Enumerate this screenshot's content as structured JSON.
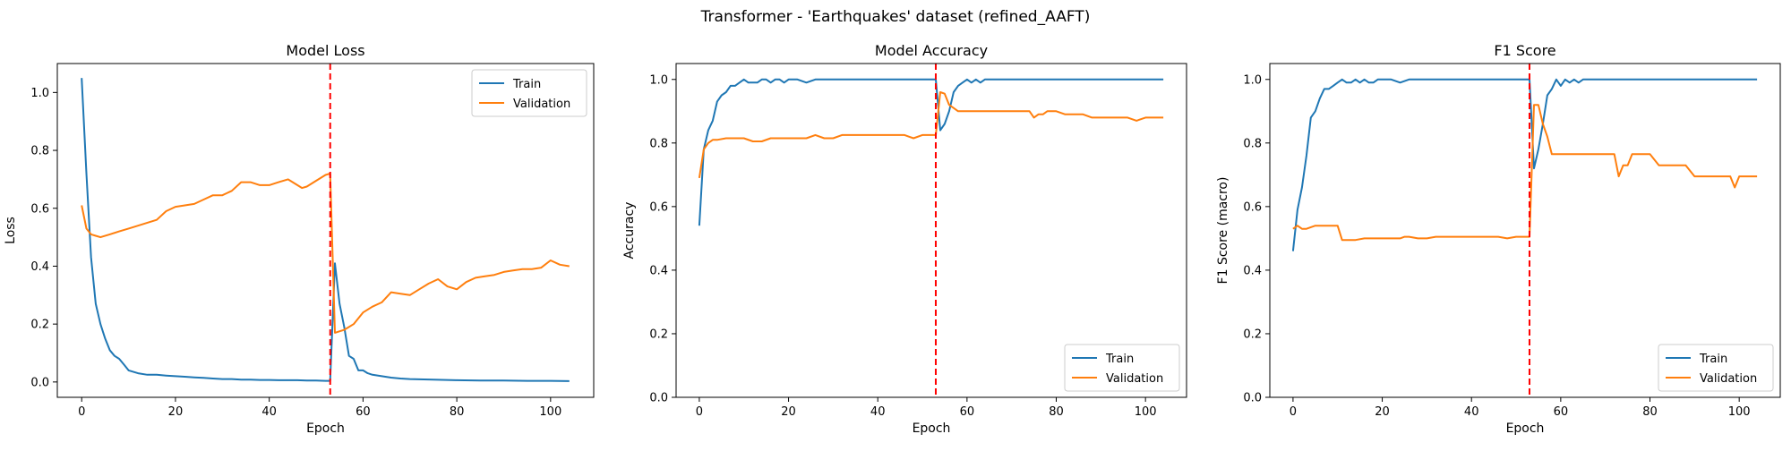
{
  "figure": {
    "suptitle": "Transformer - 'Earthquakes' dataset (refined_AAFT)"
  },
  "colors": {
    "train": "#1f77b4",
    "validation": "#ff7f0e",
    "marker": "#ff0000"
  },
  "chart_data": [
    {
      "type": "line",
      "title": "Model Loss",
      "xlabel": "Epoch",
      "ylabel": "Loss",
      "xlim": [
        -5.2,
        109.2
      ],
      "ylim": [
        -0.053,
        1.1
      ],
      "xticks": [
        0,
        20,
        40,
        60,
        80,
        100
      ],
      "yticks": [
        0.0,
        0.2,
        0.4,
        0.6,
        0.8,
        1.0
      ],
      "ytick_labels": [
        "0.0",
        "0.2",
        "0.4",
        "0.6",
        "0.8",
        "1.0"
      ],
      "legend": "top-right",
      "vline": 53,
      "series": [
        {
          "name": "Train",
          "x": [
            0,
            1,
            2,
            3,
            4,
            5,
            6,
            7,
            8,
            9,
            10,
            12,
            14,
            16,
            18,
            20,
            22,
            24,
            26,
            28,
            30,
            32,
            34,
            36,
            38,
            40,
            42,
            44,
            46,
            48,
            50,
            52,
            53,
            54,
            55,
            56,
            57,
            58,
            59,
            60,
            61,
            62,
            64,
            66,
            68,
            70,
            75,
            80,
            85,
            90,
            95,
            100,
            104
          ],
          "values": [
            1.05,
            0.72,
            0.43,
            0.27,
            0.2,
            0.15,
            0.11,
            0.09,
            0.08,
            0.06,
            0.04,
            0.03,
            0.025,
            0.025,
            0.022,
            0.02,
            0.018,
            0.016,
            0.014,
            0.012,
            0.01,
            0.01,
            0.008,
            0.008,
            0.007,
            0.007,
            0.006,
            0.006,
            0.006,
            0.005,
            0.005,
            0.004,
            0.004,
            0.41,
            0.27,
            0.19,
            0.09,
            0.08,
            0.04,
            0.04,
            0.03,
            0.025,
            0.02,
            0.015,
            0.012,
            0.01,
            0.008,
            0.006,
            0.005,
            0.005,
            0.004,
            0.004,
            0.003
          ]
        },
        {
          "name": "Validation",
          "x": [
            0,
            1,
            2,
            3,
            4,
            6,
            8,
            10,
            12,
            14,
            16,
            18,
            20,
            22,
            24,
            26,
            28,
            30,
            32,
            34,
            36,
            38,
            40,
            42,
            44,
            46,
            47,
            48,
            50,
            52,
            53,
            54,
            56,
            58,
            60,
            62,
            64,
            66,
            68,
            70,
            72,
            74,
            76,
            78,
            80,
            82,
            84,
            86,
            88,
            90,
            92,
            94,
            96,
            98,
            100,
            102,
            104
          ],
          "values": [
            0.61,
            0.53,
            0.51,
            0.505,
            0.5,
            0.51,
            0.52,
            0.53,
            0.54,
            0.55,
            0.56,
            0.59,
            0.605,
            0.61,
            0.615,
            0.63,
            0.645,
            0.645,
            0.66,
            0.69,
            0.69,
            0.68,
            0.68,
            0.69,
            0.7,
            0.68,
            0.67,
            0.675,
            0.695,
            0.715,
            0.72,
            0.17,
            0.18,
            0.2,
            0.24,
            0.26,
            0.275,
            0.31,
            0.305,
            0.3,
            0.32,
            0.34,
            0.355,
            0.33,
            0.32,
            0.345,
            0.36,
            0.365,
            0.37,
            0.38,
            0.385,
            0.39,
            0.39,
            0.395,
            0.42,
            0.405,
            0.4
          ]
        }
      ]
    },
    {
      "type": "line",
      "title": "Model Accuracy",
      "xlabel": "Epoch",
      "ylabel": "Accuracy",
      "xlim": [
        -5.2,
        109.2
      ],
      "ylim": [
        0.0,
        1.05
      ],
      "xticks": [
        0,
        20,
        40,
        60,
        80,
        100
      ],
      "yticks": [
        0.0,
        0.2,
        0.4,
        0.6,
        0.8,
        1.0
      ],
      "ytick_labels": [
        "0.0",
        "0.2",
        "0.4",
        "0.6",
        "0.8",
        "1.0"
      ],
      "legend": "bottom-right",
      "vline": 53,
      "series": [
        {
          "name": "Train",
          "x": [
            0,
            1,
            2,
            3,
            4,
            5,
            6,
            7,
            8,
            9,
            10,
            11,
            12,
            13,
            14,
            15,
            16,
            17,
            18,
            19,
            20,
            22,
            24,
            26,
            28,
            30,
            35,
            40,
            45,
            50,
            52,
            53,
            54,
            55,
            56,
            57,
            58,
            59,
            60,
            61,
            62,
            63,
            64,
            65,
            70,
            80,
            90,
            100,
            104
          ],
          "values": [
            0.54,
            0.78,
            0.84,
            0.87,
            0.93,
            0.95,
            0.96,
            0.98,
            0.98,
            0.99,
            1.0,
            0.99,
            0.99,
            0.99,
            1.0,
            1.0,
            0.99,
            1.0,
            1.0,
            0.99,
            1.0,
            1.0,
            0.99,
            1.0,
            1.0,
            1.0,
            1.0,
            1.0,
            1.0,
            1.0,
            1.0,
            1.0,
            0.84,
            0.86,
            0.9,
            0.96,
            0.98,
            0.99,
            1.0,
            0.99,
            1.0,
            0.99,
            1.0,
            1.0,
            1.0,
            1.0,
            1.0,
            1.0,
            1.0
          ]
        },
        {
          "name": "Validation",
          "x": [
            0,
            1,
            2,
            3,
            4,
            6,
            8,
            10,
            12,
            14,
            16,
            18,
            20,
            22,
            24,
            26,
            28,
            30,
            32,
            34,
            36,
            38,
            40,
            42,
            44,
            46,
            48,
            50,
            52,
            53,
            54,
            55,
            56,
            57,
            58,
            60,
            62,
            64,
            66,
            68,
            70,
            72,
            74,
            75,
            76,
            77,
            78,
            80,
            82,
            84,
            86,
            88,
            90,
            92,
            94,
            96,
            98,
            100,
            102,
            104
          ],
          "values": [
            0.69,
            0.78,
            0.8,
            0.81,
            0.81,
            0.815,
            0.815,
            0.815,
            0.805,
            0.805,
            0.815,
            0.815,
            0.815,
            0.815,
            0.815,
            0.825,
            0.815,
            0.815,
            0.825,
            0.825,
            0.825,
            0.825,
            0.825,
            0.825,
            0.825,
            0.825,
            0.815,
            0.825,
            0.825,
            0.825,
            0.96,
            0.955,
            0.92,
            0.91,
            0.9,
            0.9,
            0.9,
            0.9,
            0.9,
            0.9,
            0.9,
            0.9,
            0.9,
            0.88,
            0.89,
            0.89,
            0.9,
            0.9,
            0.89,
            0.89,
            0.89,
            0.88,
            0.88,
            0.88,
            0.88,
            0.88,
            0.87,
            0.88,
            0.88,
            0.88
          ]
        }
      ]
    },
    {
      "type": "line",
      "title": "F1 Score",
      "xlabel": "Epoch",
      "ylabel": "F1 Score (macro)",
      "xlim": [
        -5.2,
        109.2
      ],
      "ylim": [
        0.0,
        1.05
      ],
      "xticks": [
        0,
        20,
        40,
        60,
        80,
        100
      ],
      "yticks": [
        0.0,
        0.2,
        0.4,
        0.6,
        0.8,
        1.0
      ],
      "ytick_labels": [
        "0.0",
        "0.2",
        "0.4",
        "0.6",
        "0.8",
        "1.0"
      ],
      "legend": "bottom-right",
      "vline": 53,
      "series": [
        {
          "name": "Train",
          "x": [
            0,
            1,
            2,
            3,
            4,
            5,
            6,
            7,
            8,
            9,
            10,
            11,
            12,
            13,
            14,
            15,
            16,
            17,
            18,
            19,
            20,
            22,
            24,
            26,
            28,
            30,
            35,
            40,
            45,
            50,
            52,
            53,
            54,
            55,
            56,
            57,
            58,
            59,
            60,
            61,
            62,
            63,
            64,
            65,
            70,
            80,
            90,
            100,
            104
          ],
          "values": [
            0.46,
            0.59,
            0.66,
            0.76,
            0.88,
            0.9,
            0.94,
            0.97,
            0.97,
            0.98,
            0.99,
            1.0,
            0.99,
            0.99,
            1.0,
            0.99,
            1.0,
            0.99,
            0.99,
            1.0,
            1.0,
            1.0,
            0.99,
            1.0,
            1.0,
            1.0,
            1.0,
            1.0,
            1.0,
            1.0,
            1.0,
            1.0,
            0.72,
            0.78,
            0.86,
            0.95,
            0.97,
            1.0,
            0.98,
            1.0,
            0.99,
            1.0,
            0.99,
            1.0,
            1.0,
            1.0,
            1.0,
            1.0,
            1.0
          ]
        },
        {
          "name": "Validation",
          "x": [
            0,
            1,
            2,
            3,
            4,
            5,
            6,
            8,
            10,
            11,
            12,
            14,
            16,
            18,
            20,
            22,
            24,
            25,
            26,
            28,
            30,
            32,
            34,
            36,
            38,
            40,
            42,
            44,
            46,
            48,
            50,
            52,
            53,
            54,
            55,
            56,
            57,
            58,
            60,
            62,
            64,
            66,
            68,
            70,
            72,
            73,
            74,
            75,
            76,
            77,
            78,
            80,
            82,
            84,
            86,
            88,
            90,
            92,
            94,
            96,
            98,
            99,
            100,
            102,
            104
          ],
          "values": [
            0.53,
            0.54,
            0.53,
            0.53,
            0.535,
            0.54,
            0.54,
            0.54,
            0.54,
            0.495,
            0.495,
            0.495,
            0.5,
            0.5,
            0.5,
            0.5,
            0.5,
            0.505,
            0.505,
            0.5,
            0.5,
            0.505,
            0.505,
            0.505,
            0.505,
            0.505,
            0.505,
            0.505,
            0.505,
            0.5,
            0.505,
            0.505,
            0.505,
            0.92,
            0.92,
            0.86,
            0.82,
            0.765,
            0.765,
            0.765,
            0.765,
            0.765,
            0.765,
            0.765,
            0.765,
            0.695,
            0.73,
            0.73,
            0.765,
            0.765,
            0.765,
            0.765,
            0.73,
            0.73,
            0.73,
            0.73,
            0.695,
            0.695,
            0.695,
            0.695,
            0.695,
            0.66,
            0.695,
            0.695,
            0.695
          ]
        }
      ]
    }
  ]
}
